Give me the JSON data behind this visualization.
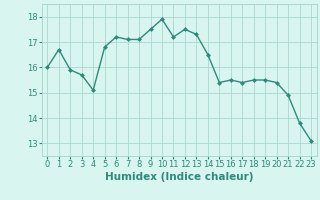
{
  "x": [
    0,
    1,
    2,
    3,
    4,
    5,
    6,
    7,
    8,
    9,
    10,
    11,
    12,
    13,
    14,
    15,
    16,
    17,
    18,
    19,
    20,
    21,
    22,
    23
  ],
  "y": [
    16.0,
    16.7,
    15.9,
    15.7,
    15.1,
    16.8,
    17.2,
    17.1,
    17.1,
    17.5,
    17.9,
    17.2,
    17.5,
    17.3,
    16.5,
    15.4,
    15.5,
    15.4,
    15.5,
    15.5,
    15.4,
    14.9,
    13.8,
    13.1
  ],
  "line_color": "#2e8b7a",
  "marker": "D",
  "marker_size": 2.0,
  "bg_color": "#d8f5f0",
  "grid_color": "#aad8d0",
  "xlabel": "Humidex (Indice chaleur)",
  "ylim": [
    12.5,
    18.5
  ],
  "xlim": [
    -0.5,
    23.5
  ],
  "yticks": [
    13,
    14,
    15,
    16,
    17,
    18
  ],
  "xticks": [
    0,
    1,
    2,
    3,
    4,
    5,
    6,
    7,
    8,
    9,
    10,
    11,
    12,
    13,
    14,
    15,
    16,
    17,
    18,
    19,
    20,
    21,
    22,
    23
  ],
  "xlabel_fontsize": 7.5,
  "tick_fontsize": 6.0,
  "line_width": 1.0,
  "fig_width": 3.2,
  "fig_height": 2.0,
  "dpi": 100
}
